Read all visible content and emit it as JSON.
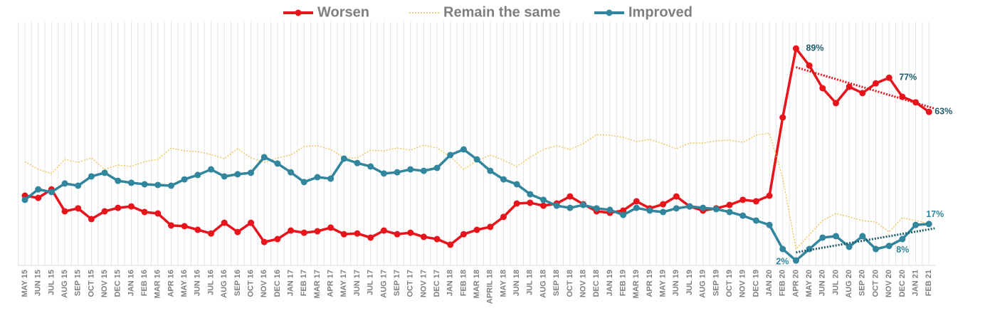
{
  "chart_data": {
    "type": "line",
    "categories": [
      "MAY 15",
      "JUN 15",
      "JUL 15",
      "AUG 15",
      "SEP 15",
      "OCT 15",
      "NOV 15",
      "DEC 15",
      "JAN 16",
      "FEB 16",
      "MAR 16",
      "APR 16",
      "MAY 16",
      "JUN 16",
      "JUL 16",
      "AUG 16",
      "SEP 16",
      "OCT 16",
      "NOV 16",
      "DEC 16",
      "JAN 17",
      "FEB 17",
      "MAR 17",
      "APR 17",
      "MAY 17",
      "JUN 17",
      "JUL 17",
      "AUG 17",
      "SEP 17",
      "OCT 17",
      "NOV 17",
      "DEC 17",
      "JAN 18",
      "FEB 18",
      "MAR 18",
      "APRIL 18",
      "MAY 18",
      "JUN 18",
      "JUL 18",
      "AUG 18",
      "SEP 18",
      "OCT 18",
      "NOV 18",
      "DEC 18",
      "JAN 19",
      "FEB 19",
      "MAR 19",
      "APR 19",
      "MAY 19",
      "JUN 19",
      "JUL 19",
      "AUG 19",
      "SEP 19",
      "OCT 19",
      "NOV 19",
      "DEC 19",
      "JAN 20",
      "FEB 20",
      "APR 20",
      "MAY 20",
      "JUN 20",
      "JUL 20",
      "AUG 20",
      "SEP 20",
      "OCT 20",
      "NOV 20",
      "DEC 20",
      "JAN 21",
      "FEB 21"
    ],
    "series": [
      {
        "name": "Worsen",
        "color": "#e8141b",
        "marker": true,
        "dotted": false,
        "trendline": true,
        "values": [
          28.6,
          27.7,
          31.2,
          22.2,
          23.4,
          19.0,
          22.2,
          23.6,
          24.2,
          21.9,
          21.3,
          16.4,
          16.1,
          14.6,
          13.1,
          17.5,
          13.7,
          17.5,
          9.6,
          10.8,
          14.3,
          13.4,
          14.0,
          15.5,
          12.8,
          13.1,
          11.4,
          14.3,
          12.8,
          13.4,
          11.7,
          10.8,
          8.5,
          12.8,
          14.6,
          15.8,
          19.9,
          25.4,
          25.7,
          24.5,
          25.4,
          28.3,
          25.1,
          22.2,
          21.6,
          22.5,
          26.3,
          23.4,
          25.1,
          28.3,
          24.2,
          22.5,
          23.4,
          24.8,
          26.9,
          26.3,
          28.6,
          60.7,
          89,
          82.0,
          72.7,
          66.6,
          73.3,
          70.7,
          74.7,
          77,
          69.2,
          66.9,
          63
        ],
        "value_labels": [
          null,
          null,
          null,
          null,
          null,
          null,
          null,
          null,
          null,
          null,
          null,
          null,
          null,
          null,
          null,
          null,
          null,
          null,
          null,
          null,
          null,
          null,
          null,
          null,
          null,
          null,
          null,
          null,
          null,
          null,
          null,
          null,
          null,
          null,
          null,
          null,
          null,
          null,
          null,
          null,
          null,
          null,
          null,
          null,
          null,
          null,
          null,
          null,
          null,
          null,
          null,
          null,
          null,
          null,
          null,
          null,
          null,
          null,
          "89%",
          null,
          null,
          null,
          null,
          null,
          null,
          "77%",
          null,
          null,
          "63%"
        ]
      },
      {
        "name": "Remain the same",
        "color": "#f2c14a",
        "marker": false,
        "dotted": true,
        "trendline": false,
        "values": [
          42.6,
          39.4,
          37.7,
          43.5,
          42.3,
          44.1,
          39.4,
          41.2,
          40.6,
          42.6,
          43.5,
          48.2,
          47.0,
          46.7,
          45.5,
          43.8,
          47.9,
          44.1,
          42.3,
          44.1,
          45.3,
          48.8,
          49.1,
          47.6,
          44.1,
          44.1,
          47.3,
          47.0,
          48.2,
          47.3,
          49.3,
          48.2,
          44.7,
          39.4,
          42.9,
          45.3,
          43.2,
          40.6,
          44.4,
          47.6,
          49.1,
          47.6,
          49.9,
          53.7,
          53.4,
          52.6,
          50.8,
          51.7,
          49.9,
          47.9,
          50.2,
          50.2,
          51.1,
          51.4,
          50.5,
          53.4,
          54.3,
          35.9,
          6.7,
          12.6,
          18.4,
          21.3,
          19.9,
          18.4,
          17.8,
          13.7,
          19.6,
          18.4,
          17.2
        ]
      },
      {
        "name": "Improved",
        "color": "#31859c",
        "marker": true,
        "dotted": false,
        "trendline": true,
        "values": [
          26.9,
          31.2,
          30.1,
          33.6,
          32.7,
          36.5,
          38.0,
          34.7,
          33.9,
          33.3,
          33.0,
          32.7,
          35.3,
          37.1,
          39.4,
          36.5,
          37.4,
          38.0,
          44.4,
          41.8,
          38.2,
          34.2,
          36.2,
          35.6,
          43.8,
          42.0,
          40.6,
          37.7,
          38.2,
          39.4,
          38.8,
          40.0,
          45.3,
          47.6,
          43.5,
          38.8,
          35.3,
          33.3,
          29.2,
          26.9,
          24.5,
          23.6,
          24.8,
          23.4,
          22.8,
          20.7,
          23.6,
          22.5,
          21.9,
          23.4,
          24.2,
          23.6,
          23.1,
          21.9,
          20.4,
          18.4,
          16.6,
          6.7,
          2,
          6.7,
          11.4,
          12.0,
          7.6,
          12.0,
          6.7,
          8,
          10.8,
          16.6,
          17
        ],
        "value_labels": [
          null,
          null,
          null,
          null,
          null,
          null,
          null,
          null,
          null,
          null,
          null,
          null,
          null,
          null,
          null,
          null,
          null,
          null,
          null,
          null,
          null,
          null,
          null,
          null,
          null,
          null,
          null,
          null,
          null,
          null,
          null,
          null,
          null,
          null,
          null,
          null,
          null,
          null,
          null,
          null,
          null,
          null,
          null,
          null,
          null,
          null,
          null,
          null,
          null,
          null,
          null,
          null,
          null,
          null,
          null,
          null,
          null,
          null,
          "2%",
          null,
          null,
          null,
          null,
          null,
          null,
          "8%",
          null,
          null,
          "17%"
        ]
      }
    ],
    "ylim": [
      0,
      100
    ],
    "legend": "top",
    "vertical_grid": true
  }
}
